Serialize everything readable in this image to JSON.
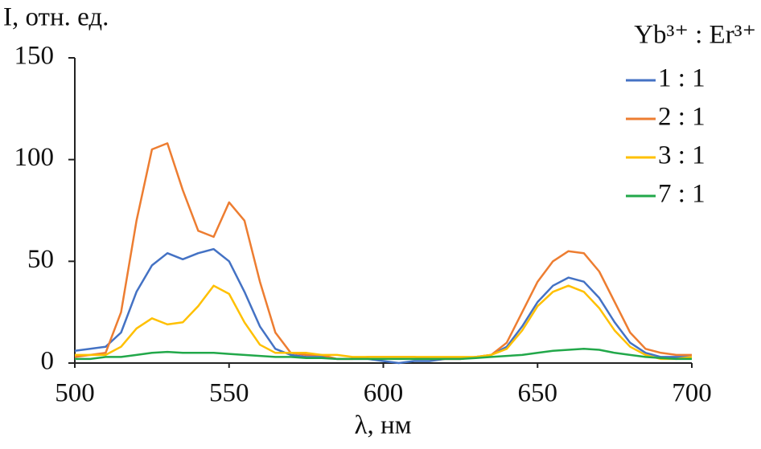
{
  "chart_data": {
    "type": "line",
    "y_label": "I, отн. ед.",
    "x_label": "λ, нм",
    "legend_title": "Yb³⁺ : Er³⁺",
    "x": [
      500,
      505,
      510,
      515,
      520,
      525,
      530,
      535,
      540,
      545,
      550,
      555,
      560,
      565,
      570,
      575,
      580,
      585,
      590,
      595,
      600,
      605,
      610,
      615,
      620,
      625,
      630,
      635,
      640,
      645,
      650,
      655,
      660,
      665,
      670,
      675,
      680,
      685,
      690,
      695,
      700
    ],
    "series": [
      {
        "name": "1 : 1",
        "color": "#4472c4",
        "values": [
          6,
          7,
          8,
          15,
          35,
          48,
          54,
          51,
          54,
          56,
          50,
          35,
          18,
          7,
          4,
          3,
          3,
          2,
          2,
          2,
          1,
          0,
          1,
          1,
          2,
          2,
          3,
          4,
          8,
          18,
          30,
          38,
          42,
          40,
          32,
          20,
          10,
          5,
          3,
          3,
          3
        ]
      },
      {
        "name": "2 : 1",
        "color": "#ed7d31",
        "values": [
          3,
          4,
          5,
          25,
          70,
          105,
          108,
          85,
          65,
          62,
          79,
          70,
          40,
          15,
          5,
          4,
          4,
          2,
          2,
          3,
          3,
          3,
          3,
          2,
          2,
          2,
          3,
          4,
          10,
          25,
          40,
          50,
          55,
          54,
          45,
          30,
          15,
          7,
          5,
          4,
          4
        ]
      },
      {
        "name": "3 : 1",
        "color": "#ffc000",
        "values": [
          4,
          4,
          4,
          8,
          17,
          22,
          19,
          20,
          28,
          38,
          34,
          20,
          9,
          5,
          5,
          5,
          4,
          4,
          3,
          3,
          3,
          3,
          3,
          3,
          3,
          3,
          3,
          4,
          7,
          16,
          28,
          35,
          38,
          35,
          27,
          16,
          8,
          4,
          2,
          2,
          3
        ]
      },
      {
        "name": "7 : 1",
        "color": "#22a84a",
        "values": [
          2,
          2,
          3,
          3,
          4,
          5,
          5.5,
          5,
          5,
          5,
          4.5,
          4,
          3.5,
          3,
          3,
          2.5,
          2.5,
          2,
          2,
          2,
          2,
          2,
          2,
          2,
          2,
          2,
          2.5,
          3,
          3.5,
          4,
          5,
          6,
          6.5,
          7,
          6.5,
          5,
          4,
          3,
          2.5,
          2,
          2
        ]
      }
    ],
    "xlim": [
      500,
      700
    ],
    "xticks": [
      500,
      550,
      600,
      650,
      700
    ],
    "ylim": [
      0,
      150
    ],
    "yticks": [
      0,
      50,
      100,
      150
    ],
    "grid": false,
    "legend": "upper right"
  }
}
